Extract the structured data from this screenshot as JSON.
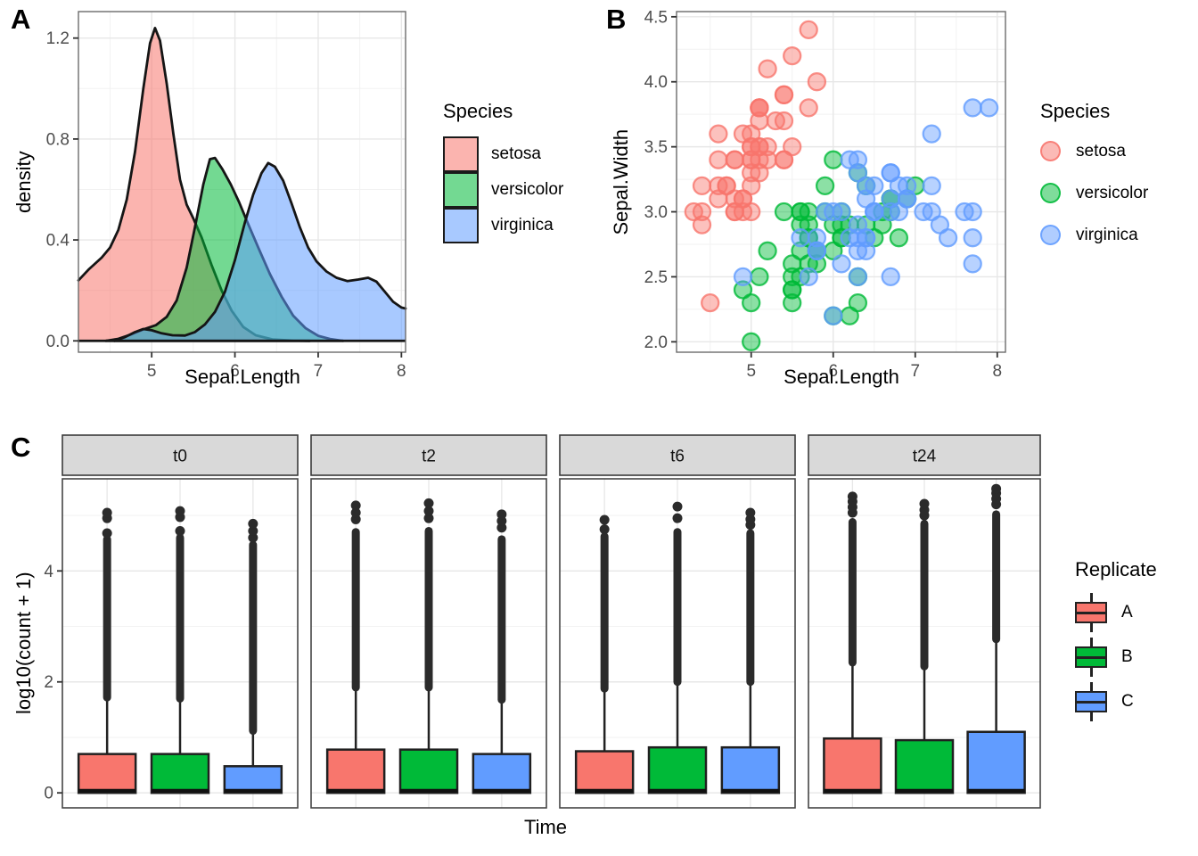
{
  "figure": {
    "tags": {
      "a": "A",
      "b": "B",
      "c": "C"
    }
  },
  "colors": {
    "red": "#F8766D",
    "green": "#00BA38",
    "blue": "#619CFF",
    "grid_major": "#E7E7E7",
    "grid_minor": "#F2F2F2",
    "panel_border_ab": "#6B6B6B",
    "panel_border_c": "#454545",
    "strip_fill": "#D9D9D9",
    "tick_text": "#4D4D4D",
    "outline": "#151515"
  },
  "chart_data": [
    {
      "id": "A",
      "type": "area",
      "kind": "density",
      "title": "",
      "xlabel": "Sepal.Length",
      "ylabel": "density",
      "xlim": [
        4.12,
        8.05
      ],
      "ylim": [
        -0.045,
        1.305
      ],
      "xticks": {
        "values": [
          5,
          6,
          7,
          8
        ],
        "labels": [
          "5",
          "6",
          "7",
          "8"
        ]
      },
      "xminor": [
        4.5,
        5.5,
        6.5,
        7.5
      ],
      "yticks": {
        "values": [
          0.0,
          0.4,
          0.8,
          1.2
        ],
        "labels": [
          "0.0",
          "0.4",
          "0.8",
          "1.2"
        ]
      },
      "yminor": [
        0.2,
        0.6,
        1.0
      ],
      "legend": {
        "title": "Species",
        "entries": [
          {
            "label": "setosa",
            "color": "#F8766D",
            "fill": "rgba(248,118,109,0.55)"
          },
          {
            "label": "versicolor",
            "color": "#00BA38",
            "fill": "rgba(0,186,56,0.55)"
          },
          {
            "label": "virginica",
            "color": "#619CFF",
            "fill": "rgba(97,156,255,0.55)"
          }
        ]
      },
      "series": [
        {
          "name": "setosa",
          "color": "#F8766D",
          "fill": "rgba(248,118,109,0.55)",
          "points": [
            [
              4.12,
              0.24
            ],
            [
              4.25,
              0.285
            ],
            [
              4.4,
              0.33
            ],
            [
              4.5,
              0.37
            ],
            [
              4.6,
              0.44
            ],
            [
              4.7,
              0.56
            ],
            [
              4.8,
              0.75
            ],
            [
              4.9,
              1.0
            ],
            [
              4.98,
              1.18
            ],
            [
              5.04,
              1.24
            ],
            [
              5.1,
              1.19
            ],
            [
              5.18,
              1.02
            ],
            [
              5.26,
              0.82
            ],
            [
              5.34,
              0.64
            ],
            [
              5.42,
              0.54
            ],
            [
              5.5,
              0.485
            ],
            [
              5.6,
              0.41
            ],
            [
              5.72,
              0.3
            ],
            [
              5.84,
              0.2
            ],
            [
              5.96,
              0.12
            ],
            [
              6.1,
              0.055
            ],
            [
              6.25,
              0.022
            ],
            [
              6.45,
              0.006
            ],
            [
              6.7,
              0.001
            ],
            [
              6.9,
              0.0
            ]
          ]
        },
        {
          "name": "versicolor",
          "color": "#00BA38",
          "fill": "rgba(0,186,56,0.55)",
          "points": [
            [
              4.45,
              0.0
            ],
            [
              4.6,
              0.008
            ],
            [
              4.75,
              0.025
            ],
            [
              4.9,
              0.045
            ],
            [
              5.05,
              0.062
            ],
            [
              5.18,
              0.095
            ],
            [
              5.3,
              0.16
            ],
            [
              5.42,
              0.29
            ],
            [
              5.52,
              0.45
            ],
            [
              5.62,
              0.62
            ],
            [
              5.7,
              0.72
            ],
            [
              5.76,
              0.725
            ],
            [
              5.85,
              0.68
            ],
            [
              5.95,
              0.62
            ],
            [
              6.05,
              0.55
            ],
            [
              6.15,
              0.47
            ],
            [
              6.28,
              0.37
            ],
            [
              6.42,
              0.265
            ],
            [
              6.56,
              0.175
            ],
            [
              6.7,
              0.1
            ],
            [
              6.85,
              0.05
            ],
            [
              7.0,
              0.02
            ],
            [
              7.15,
              0.007
            ],
            [
              7.3,
              0.0
            ]
          ]
        },
        {
          "name": "virginica",
          "color": "#619CFF",
          "fill": "rgba(97,156,255,0.55)",
          "points": [
            [
              4.55,
              0.0
            ],
            [
              4.68,
              0.015
            ],
            [
              4.8,
              0.035
            ],
            [
              4.9,
              0.047
            ],
            [
              5.0,
              0.042
            ],
            [
              5.12,
              0.03
            ],
            [
              5.25,
              0.022
            ],
            [
              5.4,
              0.021
            ],
            [
              5.52,
              0.035
            ],
            [
              5.64,
              0.065
            ],
            [
              5.76,
              0.115
            ],
            [
              5.88,
              0.195
            ],
            [
              6.0,
              0.32
            ],
            [
              6.12,
              0.47
            ],
            [
              6.22,
              0.58
            ],
            [
              6.32,
              0.665
            ],
            [
              6.4,
              0.705
            ],
            [
              6.48,
              0.69
            ],
            [
              6.58,
              0.635
            ],
            [
              6.68,
              0.545
            ],
            [
              6.78,
              0.45
            ],
            [
              6.88,
              0.37
            ],
            [
              6.98,
              0.315
            ],
            [
              7.1,
              0.275
            ],
            [
              7.22,
              0.25
            ],
            [
              7.35,
              0.237
            ],
            [
              7.48,
              0.243
            ],
            [
              7.6,
              0.25
            ],
            [
              7.7,
              0.235
            ],
            [
              7.8,
              0.195
            ],
            [
              7.9,
              0.155
            ],
            [
              8.0,
              0.132
            ],
            [
              8.05,
              0.128
            ]
          ]
        }
      ]
    },
    {
      "id": "B",
      "type": "scatter",
      "title": "",
      "xlabel": "Sepal.Length",
      "ylabel": "Sepal.Width",
      "xlim": [
        4.09,
        8.1
      ],
      "ylim": [
        1.92,
        4.54
      ],
      "xticks": {
        "values": [
          5,
          6,
          7,
          8
        ],
        "labels": [
          "5",
          "6",
          "7",
          "8"
        ]
      },
      "xminor": [
        4.5,
        5.5,
        6.5,
        7.5
      ],
      "yticks": {
        "values": [
          2.0,
          2.5,
          3.0,
          3.5,
          4.0,
          4.5
        ],
        "labels": [
          "2.0",
          "2.5",
          "3.0",
          "3.5",
          "4.0",
          "4.5"
        ]
      },
      "yminor": [
        2.25,
        2.75,
        3.25,
        3.75,
        4.25
      ],
      "legend": {
        "title": "Species",
        "entries": [
          {
            "label": "setosa",
            "color": "#F8766D",
            "fill": "rgba(248,118,109,0.5)",
            "ring": "rgba(248,118,109,0.85)"
          },
          {
            "label": "versicolor",
            "color": "#00BA38",
            "fill": "rgba(0,186,56,0.5)",
            "ring": "rgba(0,186,56,0.85)"
          },
          {
            "label": "virginica",
            "color": "#619CFF",
            "fill": "rgba(97,156,255,0.5)",
            "ring": "rgba(97,156,255,0.85)"
          }
        ]
      },
      "series": [
        {
          "name": "setosa",
          "color": "#F8766D",
          "fill": "rgba(248,118,109,0.45)",
          "ring": "rgba(248,118,109,0.8)",
          "x": [
            5.1,
            4.9,
            4.7,
            4.6,
            5.0,
            5.4,
            4.6,
            5.0,
            4.4,
            4.9,
            5.4,
            4.8,
            4.8,
            4.3,
            5.8,
            5.7,
            5.4,
            5.1,
            5.7,
            5.1,
            5.4,
            5.1,
            4.6,
            5.1,
            4.8,
            5.0,
            5.0,
            5.2,
            5.2,
            4.7,
            4.8,
            5.4,
            5.2,
            5.5,
            4.9,
            5.0,
            5.5,
            4.9,
            4.4,
            5.1,
            5.0,
            4.5,
            4.4,
            5.0,
            5.1,
            4.8,
            5.1,
            4.6,
            5.3,
            5.0
          ],
          "y": [
            3.5,
            3.0,
            3.2,
            3.1,
            3.6,
            3.9,
            3.4,
            3.4,
            2.9,
            3.1,
            3.7,
            3.4,
            3.0,
            3.0,
            4.0,
            4.4,
            3.9,
            3.5,
            3.8,
            3.8,
            3.4,
            3.7,
            3.6,
            3.3,
            3.4,
            3.0,
            3.4,
            3.5,
            3.4,
            3.2,
            3.1,
            3.4,
            4.1,
            4.2,
            3.1,
            3.2,
            3.5,
            3.6,
            3.0,
            3.4,
            3.5,
            2.3,
            3.2,
            3.5,
            3.8,
            3.0,
            3.8,
            3.2,
            3.7,
            3.3
          ]
        },
        {
          "name": "versicolor",
          "color": "#00BA38",
          "fill": "rgba(0,186,56,0.45)",
          "ring": "rgba(0,186,56,0.8)",
          "x": [
            7.0,
            6.4,
            6.9,
            5.5,
            6.5,
            5.7,
            6.3,
            4.9,
            6.6,
            5.2,
            5.0,
            5.9,
            6.0,
            6.1,
            5.6,
            6.7,
            5.6,
            5.8,
            6.2,
            5.6,
            5.9,
            6.1,
            6.3,
            6.1,
            6.4,
            6.6,
            6.8,
            6.7,
            6.0,
            5.7,
            5.5,
            5.5,
            5.8,
            6.0,
            5.4,
            6.0,
            6.7,
            6.3,
            5.6,
            5.5,
            5.5,
            6.1,
            5.8,
            5.0,
            5.6,
            5.7,
            5.7,
            6.2,
            5.1,
            5.7
          ],
          "y": [
            3.2,
            3.2,
            3.1,
            2.3,
            2.8,
            2.8,
            3.3,
            2.4,
            2.9,
            2.7,
            2.0,
            3.0,
            2.2,
            2.9,
            2.9,
            3.1,
            3.0,
            2.7,
            2.2,
            2.5,
            3.2,
            2.8,
            2.5,
            2.8,
            2.9,
            3.0,
            2.8,
            3.0,
            2.9,
            2.6,
            2.4,
            2.4,
            2.7,
            2.7,
            3.0,
            3.4,
            3.1,
            2.3,
            3.0,
            2.5,
            2.6,
            3.0,
            2.6,
            2.3,
            2.7,
            3.0,
            2.9,
            2.9,
            2.5,
            2.8
          ]
        },
        {
          "name": "virginica",
          "color": "#619CFF",
          "fill": "rgba(97,156,255,0.45)",
          "ring": "rgba(97,156,255,0.8)",
          "x": [
            6.3,
            5.8,
            7.1,
            6.3,
            6.5,
            7.6,
            4.9,
            7.3,
            6.7,
            7.2,
            6.5,
            6.4,
            6.8,
            5.7,
            5.8,
            6.4,
            6.5,
            7.7,
            7.7,
            6.0,
            6.9,
            5.6,
            7.7,
            6.3,
            6.7,
            7.2,
            6.2,
            6.1,
            6.4,
            7.2,
            7.4,
            7.9,
            6.4,
            6.3,
            6.1,
            7.7,
            6.3,
            6.4,
            6.0,
            6.9,
            6.7,
            6.9,
            5.8,
            6.8,
            6.7,
            6.7,
            6.3,
            6.5,
            6.2,
            5.9
          ],
          "y": [
            3.3,
            2.7,
            3.0,
            2.9,
            3.0,
            3.0,
            2.5,
            2.9,
            2.5,
            3.6,
            3.2,
            2.7,
            3.0,
            2.5,
            2.8,
            3.2,
            3.0,
            3.8,
            2.6,
            2.2,
            3.2,
            2.8,
            2.8,
            2.7,
            3.3,
            3.2,
            2.8,
            3.0,
            2.8,
            3.0,
            2.8,
            3.8,
            2.8,
            2.8,
            2.6,
            3.0,
            3.4,
            3.1,
            3.0,
            3.1,
            3.1,
            3.1,
            2.7,
            3.2,
            3.3,
            3.0,
            2.5,
            3.0,
            3.4,
            3.0
          ]
        }
      ]
    },
    {
      "id": "C",
      "type": "boxplot",
      "title": "",
      "xlabel": "Time",
      "ylabel": "log10(count + 1)",
      "ylim": [
        -0.27,
        5.66
      ],
      "yticks": {
        "values": [
          0,
          2,
          4
        ],
        "labels": [
          "0",
          "2",
          "4"
        ]
      },
      "yminor": [
        1,
        3,
        5
      ],
      "facets": [
        "t0",
        "t2",
        "t6",
        "t24"
      ],
      "legend": {
        "title": "Replicate",
        "entries": [
          {
            "label": "A",
            "color": "#F8766D"
          },
          {
            "label": "B",
            "color": "#00BA38"
          },
          {
            "label": "C",
            "color": "#619CFF"
          }
        ]
      },
      "boxes": {
        "t0": [
          {
            "group": "A",
            "q1": 0,
            "median": 0.04,
            "q3": 0.7,
            "whisker_high": 1.72,
            "outlier_dense_to": 4.57,
            "outlier_dots": [
              4.68,
              4.95,
              5.05
            ]
          },
          {
            "group": "B",
            "q1": 0,
            "median": 0.04,
            "q3": 0.7,
            "whisker_high": 1.7,
            "outlier_dense_to": 4.6,
            "outlier_dots": [
              4.72,
              4.97,
              5.08
            ]
          },
          {
            "group": "C",
            "q1": 0,
            "median": 0.04,
            "q3": 0.48,
            "whisker_high": 1.12,
            "outlier_dense_to": 4.47,
            "outlier_dots": [
              4.6,
              4.72,
              4.85
            ]
          }
        ],
        "t2": [
          {
            "group": "A",
            "q1": 0,
            "median": 0.04,
            "q3": 0.78,
            "whisker_high": 1.9,
            "outlier_dense_to": 4.7,
            "outlier_dots": [
              4.93,
              5.05,
              5.18
            ]
          },
          {
            "group": "B",
            "q1": 0,
            "median": 0.04,
            "q3": 0.78,
            "whisker_high": 1.9,
            "outlier_dense_to": 4.72,
            "outlier_dots": [
              4.95,
              5.08,
              5.22
            ]
          },
          {
            "group": "C",
            "q1": 0,
            "median": 0.04,
            "q3": 0.7,
            "whisker_high": 1.68,
            "outlier_dense_to": 4.57,
            "outlier_dots": [
              4.78,
              4.9,
              5.02
            ]
          }
        ],
        "t6": [
          {
            "group": "A",
            "q1": 0,
            "median": 0.04,
            "q3": 0.75,
            "whisker_high": 1.88,
            "outlier_dense_to": 4.62,
            "outlier_dots": [
              4.75,
              4.92
            ]
          },
          {
            "group": "B",
            "q1": 0,
            "median": 0.04,
            "q3": 0.82,
            "whisker_high": 2.0,
            "outlier_dense_to": 4.7,
            "outlier_dots": [
              4.95,
              5.16
            ]
          },
          {
            "group": "C",
            "q1": 0,
            "median": 0.04,
            "q3": 0.82,
            "whisker_high": 2.0,
            "outlier_dense_to": 4.68,
            "outlier_dots": [
              4.83,
              4.93,
              5.05
            ]
          }
        ],
        "t24": [
          {
            "group": "A",
            "q1": 0,
            "median": 0.04,
            "q3": 0.98,
            "whisker_high": 2.35,
            "outlier_dense_to": 4.88,
            "outlier_dots": [
              5.05,
              5.15,
              5.25,
              5.34
            ]
          },
          {
            "group": "B",
            "q1": 0,
            "median": 0.04,
            "q3": 0.95,
            "whisker_high": 2.28,
            "outlier_dense_to": 4.85,
            "outlier_dots": [
              5.0,
              5.1,
              5.21
            ]
          },
          {
            "group": "C",
            "q1": 0,
            "median": 0.04,
            "q3": 1.1,
            "whisker_high": 2.77,
            "outlier_dense_to": 5.02,
            "outlier_dots": [
              5.2,
              5.3,
              5.4,
              5.48
            ]
          }
        ]
      }
    }
  ]
}
